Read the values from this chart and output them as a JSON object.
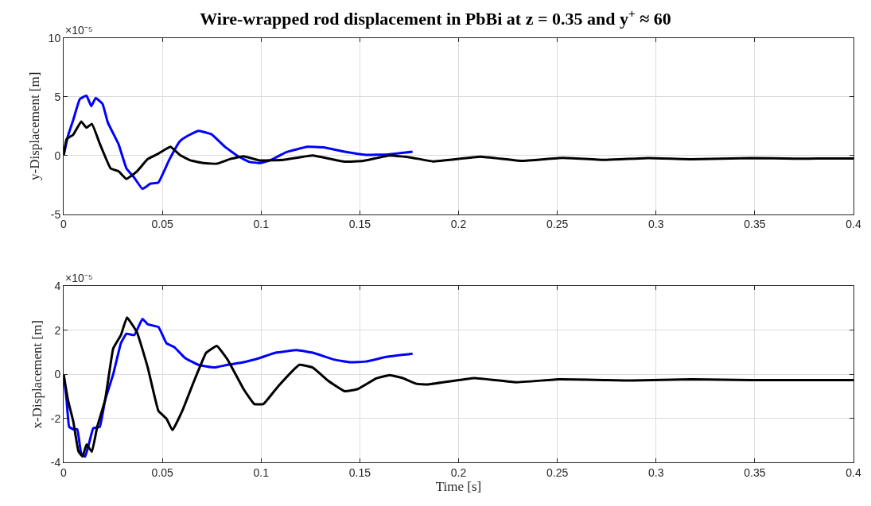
{
  "chart_data": [
    {
      "type": "line",
      "title": "Wire-wrapped rod displacement in PbBi at z = 0.35 and y$^{+}$ ≈ 60",
      "ylabel": "y-Displacement [m]",
      "annotations": [
        "×10⁻⁵"
      ],
      "xlim": [
        0,
        0.4
      ],
      "xticks": [
        0,
        0.05,
        0.1,
        0.15,
        0.2,
        0.25,
        0.3,
        0.35,
        0.4
      ],
      "ylim": [
        -5,
        10
      ],
      "yticks": [
        -5,
        0,
        5,
        10
      ],
      "grid": true,
      "line_style": "solid",
      "marker": "none",
      "series": [
        {
          "color": "#0000ff",
          "x": [
            0,
            0.0022,
            0.0049,
            0.0082,
            0.0116,
            0.014,
            0.0162,
            0.0197,
            0.0224,
            0.0278,
            0.0318,
            0.0358,
            0.0399,
            0.044,
            0.048,
            0.0534,
            0.0588,
            0.0628,
            0.0682,
            0.0749,
            0.0817,
            0.0884,
            0.0938,
            0.0992,
            0.1046,
            0.1127,
            0.1235,
            0.1316,
            0.1423,
            0.1531,
            0.1639,
            0.1767
          ],
          "values": [
            0,
            1.67,
            3.05,
            4.8,
            5.1,
            4.2,
            4.9,
            4.4,
            2.8,
            0.97,
            -1.1,
            -1.9,
            -2.85,
            -2.4,
            -2.3,
            -0.4,
            1.2,
            1.67,
            2.1,
            1.8,
            0.74,
            -0.07,
            -0.53,
            -0.65,
            -0.42,
            0.28,
            0.74,
            0.69,
            0.32,
            0.05,
            0.09,
            0.32
          ]
        },
        {
          "color": "#000000",
          "x": [
            0,
            0.0015,
            0.0049,
            0.0089,
            0.0116,
            0.0143,
            0.0184,
            0.0238,
            0.0278,
            0.0318,
            0.0372,
            0.0426,
            0.048,
            0.0541,
            0.0588,
            0.0642,
            0.0709,
            0.0776,
            0.0844,
            0.0911,
            0.0992,
            0.1113,
            0.1261,
            0.1423,
            0.1517,
            0.1652,
            0.1763,
            0.187,
            0.211,
            0.232,
            0.2526,
            0.2735,
            0.296,
            0.318,
            0.348,
            0.37,
            0.394,
            0.4
          ],
          "values": [
            0,
            1.4,
            1.78,
            2.9,
            2.36,
            2.7,
            0.97,
            -1.1,
            -1.34,
            -2.0,
            -1.34,
            -0.3,
            0.16,
            0.74,
            0.05,
            -0.42,
            -0.65,
            -0.7,
            -0.3,
            -0.07,
            -0.42,
            -0.37,
            0,
            -0.53,
            -0.46,
            0,
            -0.18,
            -0.5,
            -0.1,
            -0.46,
            -0.2,
            -0.38,
            -0.22,
            -0.32,
            -0.22,
            -0.27,
            -0.25,
            -0.25
          ]
        }
      ]
    },
    {
      "type": "line",
      "xlabel": "Time [s]",
      "ylabel": "x-Displacement [m]",
      "annotations": [
        "×10⁻⁵"
      ],
      "xlim": [
        0,
        0.4
      ],
      "xticks": [
        0,
        0.05,
        0.1,
        0.15,
        0.2,
        0.25,
        0.3,
        0.35,
        0.4
      ],
      "ylim": [
        -4,
        4
      ],
      "yticks": [
        -4,
        -2,
        0,
        2,
        4
      ],
      "grid": true,
      "line_style": "solid",
      "marker": "none",
      "series": [
        {
          "color": "#0000ff",
          "x": [
            0,
            0.0015,
            0.0028,
            0.0049,
            0.0069,
            0.0089,
            0.0109,
            0.0129,
            0.015,
            0.0183,
            0.021,
            0.0251,
            0.029,
            0.0318,
            0.0358,
            0.0399,
            0.0426,
            0.048,
            0.0521,
            0.0561,
            0.0615,
            0.0682,
            0.0763,
            0.083,
            0.0911,
            0.0992,
            0.1073,
            0.1181,
            0.1262,
            0.1369,
            0.145,
            0.1531,
            0.1639,
            0.1767
          ],
          "values": [
            0,
            -1.17,
            -2.39,
            -2.5,
            -2.5,
            -3.6,
            -3.74,
            -3.13,
            -2.45,
            -2.39,
            -1.17,
            0,
            1.41,
            1.84,
            1.78,
            2.52,
            2.27,
            2.15,
            1.41,
            1.23,
            0.74,
            0.43,
            0.31,
            0.43,
            0.55,
            0.74,
            0.98,
            1.1,
            0.98,
            0.67,
            0.55,
            0.58,
            0.8,
            0.94
          ]
        },
        {
          "color": "#000000",
          "x": [
            0,
            0.0022,
            0.0049,
            0.0075,
            0.0096,
            0.0116,
            0.0143,
            0.017,
            0.021,
            0.0251,
            0.029,
            0.0321,
            0.0372,
            0.0426,
            0.048,
            0.0521,
            0.0551,
            0.0601,
            0.0655,
            0.0722,
            0.0776,
            0.083,
            0.0911,
            0.0965,
            0.1012,
            0.1086,
            0.1194,
            0.1261,
            0.1342,
            0.1423,
            0.149,
            0.1585,
            0.1652,
            0.1719,
            0.1787,
            0.1843,
            0.208,
            0.229,
            0.251,
            0.288,
            0.318,
            0.348,
            0.394,
            0.4
          ],
          "values": [
            0,
            -1.17,
            -2.15,
            -3.5,
            -3.74,
            -3.19,
            -3.52,
            -2.39,
            -1.17,
            1.17,
            1.78,
            2.58,
            1.9,
            0.31,
            -1.66,
            -2.02,
            -2.54,
            -1.66,
            -0.43,
            0.98,
            1.29,
            0.67,
            -0.67,
            -1.35,
            -1.35,
            -0.55,
            0.43,
            0.31,
            -0.31,
            -0.77,
            -0.67,
            -0.18,
            -0.04,
            -0.18,
            -0.43,
            -0.46,
            -0.17,
            -0.36,
            -0.23,
            -0.28,
            -0.23,
            -0.26,
            -0.26,
            -0.26
          ]
        }
      ]
    }
  ]
}
